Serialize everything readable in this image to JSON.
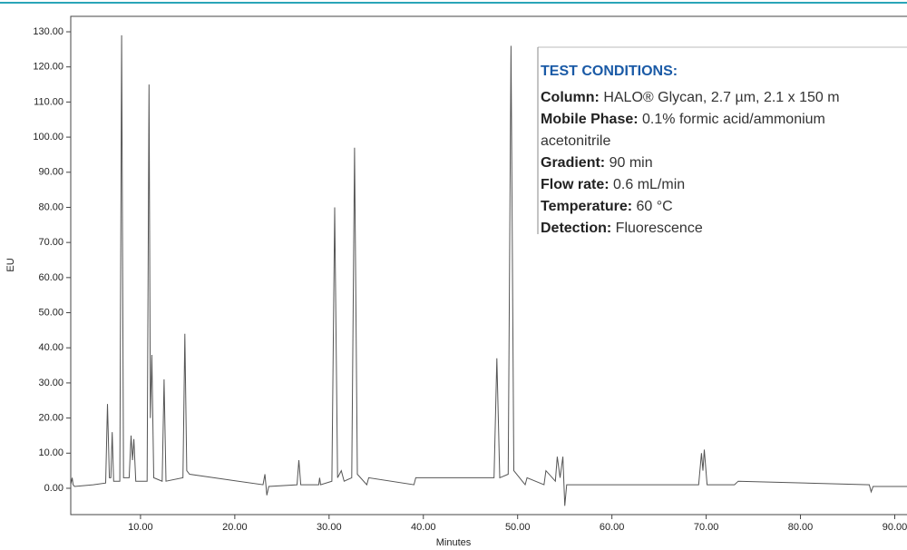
{
  "chart_data": {
    "type": "line",
    "x_label": "Minutes",
    "y_label": "EU",
    "x": [
      2.6,
      2.75,
      2.85,
      3,
      5,
      6.3,
      6.5,
      6.7,
      6.85,
      7.0,
      7.15,
      7.8,
      8.0,
      8.2,
      8.8,
      9.0,
      9.15,
      9.3,
      9.5,
      10.7,
      10.9,
      11.05,
      11.2,
      11.4,
      12.3,
      12.5,
      12.7,
      14.5,
      14.7,
      14.9,
      15.2,
      23.0,
      23.2,
      23.4,
      23.6,
      26.6,
      26.8,
      27.0,
      28.9,
      29.0,
      29.1,
      30.3,
      30.6,
      30.9,
      31.3,
      31.6,
      32.4,
      32.7,
      33.0,
      34.0,
      34.2,
      39.0,
      39.2,
      47.5,
      47.8,
      48.1,
      49.0,
      49.3,
      49.6,
      50.8,
      51.0,
      52.8,
      53.0,
      54.0,
      54.2,
      54.5,
      54.8,
      55.0,
      55.2,
      69.2,
      69.5,
      69.65,
      69.8,
      70.1,
      73.0,
      73.4,
      87.3,
      87.5,
      87.7,
      91.3
    ],
    "values": [
      1,
      3,
      1,
      0.5,
      1,
      1.5,
      24,
      3,
      3,
      16,
      2,
      2,
      129,
      3,
      3,
      15,
      8,
      14,
      2,
      2,
      115,
      20,
      38,
      3,
      2,
      31,
      2,
      3,
      44,
      5,
      4,
      1,
      4,
      -2,
      0.5,
      1,
      8,
      1,
      1,
      3,
      1,
      2,
      80,
      3,
      5,
      2,
      3,
      97,
      4,
      1,
      3,
      1,
      3,
      3,
      37,
      3,
      4,
      126,
      5,
      1,
      3,
      1,
      5,
      2,
      9,
      3,
      9,
      -5,
      1,
      1,
      10,
      5,
      11,
      1,
      1,
      2,
      1,
      -1,
      0.5,
      0.5
    ],
    "color": "#555555",
    "xlim": [
      2.6,
      91.3
    ],
    "ylim": [
      -7.5,
      134.4
    ],
    "xticks": [
      {
        "value": 10,
        "label": "10.00"
      },
      {
        "value": 20,
        "label": "20.00"
      },
      {
        "value": 30,
        "label": "30.00"
      },
      {
        "value": 40,
        "label": "40.00"
      },
      {
        "value": 50,
        "label": "50.00"
      },
      {
        "value": 60,
        "label": "60.00"
      },
      {
        "value": 70,
        "label": "70.00"
      },
      {
        "value": 80,
        "label": "80.00"
      },
      {
        "value": 90,
        "label": "90.00"
      }
    ],
    "yticks": [
      {
        "value": 0,
        "label": "0.00"
      },
      {
        "value": 10,
        "label": "10.00"
      },
      {
        "value": 20,
        "label": "20.00"
      },
      {
        "value": 30,
        "label": "30.00"
      },
      {
        "value": 40,
        "label": "40.00"
      },
      {
        "value": 50,
        "label": "50.00"
      },
      {
        "value": 60,
        "label": "60.00"
      },
      {
        "value": 70,
        "label": "70.00"
      },
      {
        "value": 80,
        "label": "80.00"
      },
      {
        "value": 90,
        "label": "90.00"
      },
      {
        "value": 100,
        "label": "100.00"
      },
      {
        "value": 110,
        "label": "110.00"
      },
      {
        "value": 120,
        "label": "120.00"
      },
      {
        "value": 130,
        "label": "130.00"
      }
    ],
    "annotation": {
      "title": "TEST CONDITIONS:",
      "lines": [
        {
          "label": "Column:",
          "text": " HALO® Glycan, 2.7 µm, 2.1 x 150 m"
        },
        {
          "label": "Mobile Phase:",
          "text": " 0.1% formic acid/ammonium"
        },
        {
          "text": "acetonitrile"
        },
        {
          "label": "Gradient:",
          "text": " 90 min"
        },
        {
          "label": "Flow rate:",
          "text": " 0.6 mL/min"
        },
        {
          "label": "Temperature:",
          "text": " 60 °C"
        },
        {
          "label": "Detection:",
          "text": " Fluorescence"
        }
      ]
    }
  }
}
